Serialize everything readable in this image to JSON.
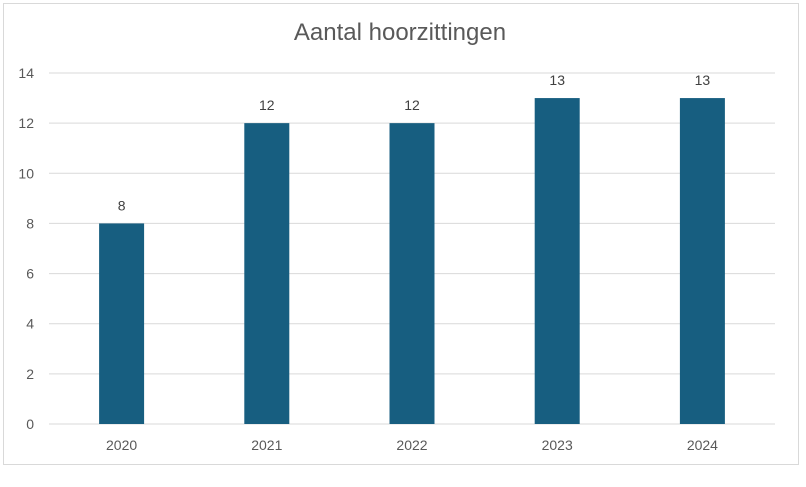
{
  "chart_data": {
    "type": "bar",
    "title": "Aantal hoorzittingen",
    "xlabel": "",
    "ylabel": "",
    "categories": [
      "2020",
      "2021",
      "2022",
      "2023",
      "2024"
    ],
    "values": [
      8,
      12,
      12,
      13,
      13
    ],
    "data_labels": [
      "8",
      "12",
      "12",
      "13",
      "13"
    ],
    "y_ticks": [
      "0",
      "2",
      "4",
      "6",
      "8",
      "10",
      "12",
      "14"
    ],
    "ylim": [
      0,
      14
    ],
    "grid": true,
    "legend": "none",
    "bar_color": "#175e80",
    "grid_color": "#d9d9d9"
  }
}
